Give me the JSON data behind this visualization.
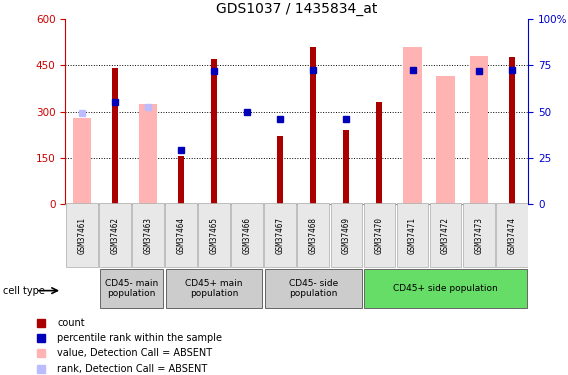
{
  "title": "GDS1037 / 1435834_at",
  "samples": [
    "GSM37461",
    "GSM37462",
    "GSM37463",
    "GSM37464",
    "GSM37465",
    "GSM37466",
    "GSM37467",
    "GSM37468",
    "GSM37469",
    "GSM37470",
    "GSM37471",
    "GSM37472",
    "GSM37473",
    "GSM37474"
  ],
  "red_bars": [
    null,
    440,
    null,
    155,
    470,
    null,
    220,
    510,
    240,
    330,
    null,
    null,
    null,
    475
  ],
  "pink_bars": [
    280,
    null,
    325,
    null,
    null,
    null,
    null,
    null,
    null,
    null,
    510,
    415,
    480,
    null
  ],
  "blue_squares_left": [
    null,
    330,
    null,
    175,
    430,
    300,
    275,
    435,
    275,
    null,
    435,
    null,
    430,
    435
  ],
  "lavender_squares_left": [
    295,
    null,
    315,
    null,
    null,
    null,
    null,
    null,
    null,
    null,
    null,
    null,
    null,
    null
  ],
  "ylim_left": [
    0,
    600
  ],
  "ylim_right": [
    0,
    100
  ],
  "yticks_left": [
    0,
    150,
    300,
    450,
    600
  ],
  "yticks_right": [
    0,
    25,
    50,
    75,
    100
  ],
  "ytick_right_labels": [
    "0",
    "25",
    "50",
    "75",
    "100%"
  ],
  "cell_type_groups": [
    {
      "label": "CD45- main\npopulation",
      "start": 1,
      "end": 3,
      "color": "#cccccc"
    },
    {
      "label": "CD45+ main\npopulation",
      "start": 3,
      "end": 6,
      "color": "#cccccc"
    },
    {
      "label": "CD45- side\npopulation",
      "start": 6,
      "end": 9,
      "color": "#cccccc"
    },
    {
      "label": "CD45+ side population",
      "start": 9,
      "end": 14,
      "color": "#66dd66"
    }
  ],
  "red_color": "#aa0000",
  "pink_color": "#ffb3b3",
  "blue_color": "#0000bb",
  "lavender_color": "#bbbbff",
  "left_axis_color": "#cc0000",
  "right_axis_color": "#0000cc"
}
